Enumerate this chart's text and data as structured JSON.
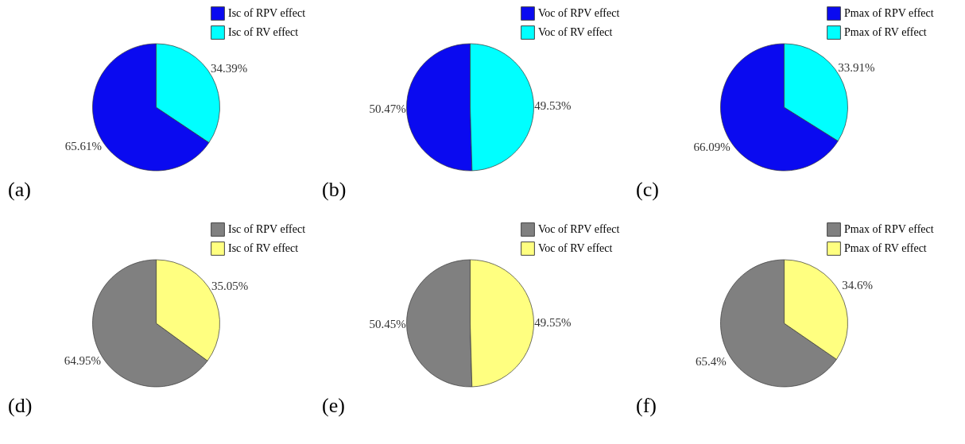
{
  "chart_data": [
    {
      "type": "pie",
      "title": "(a)",
      "categories": [
        "Isc of RPV effect",
        "Isc of RV effect"
      ],
      "values": [
        65.61,
        34.39
      ],
      "colors": [
        "#0a0af0",
        "#00ffff"
      ],
      "value_labels": [
        "65.61%",
        "34.39%"
      ],
      "legend": "top right"
    },
    {
      "type": "pie",
      "title": "(b)",
      "categories": [
        "Voc of RPV effect",
        "Voc of RV effect"
      ],
      "values": [
        50.47,
        49.53
      ],
      "colors": [
        "#0a0af0",
        "#00ffff"
      ],
      "value_labels": [
        "50.47%",
        "49.53%"
      ],
      "legend": "top right"
    },
    {
      "type": "pie",
      "title": "(c)",
      "categories": [
        "Pmax of RPV effect",
        "Pmax of RV effect"
      ],
      "values": [
        66.09,
        33.91
      ],
      "colors": [
        "#0a0af0",
        "#00ffff"
      ],
      "value_labels": [
        "66.09%",
        "33.91%"
      ],
      "legend": "top right"
    },
    {
      "type": "pie",
      "title": "(d)",
      "categories": [
        "Isc of RPV effect",
        "Isc of RV effect"
      ],
      "values": [
        64.95,
        35.05
      ],
      "colors": [
        "#808080",
        "#ffff80"
      ],
      "value_labels": [
        "64.95%",
        "35.05%"
      ],
      "legend": "top right"
    },
    {
      "type": "pie",
      "title": "(e)",
      "categories": [
        "Voc of RPV effect",
        "Voc of RV effect"
      ],
      "values": [
        50.45,
        49.55
      ],
      "colors": [
        "#808080",
        "#ffff80"
      ],
      "value_labels": [
        "50.45%",
        "49.55%"
      ],
      "legend": "top right"
    },
    {
      "type": "pie",
      "title": "(f)",
      "categories": [
        "Pmax of RPV effect",
        "Pmax of RV effect"
      ],
      "values": [
        65.4,
        34.6
      ],
      "colors": [
        "#808080",
        "#ffff80"
      ],
      "value_labels": [
        "65.4%",
        "34.6%"
      ],
      "legend": "top right"
    }
  ]
}
